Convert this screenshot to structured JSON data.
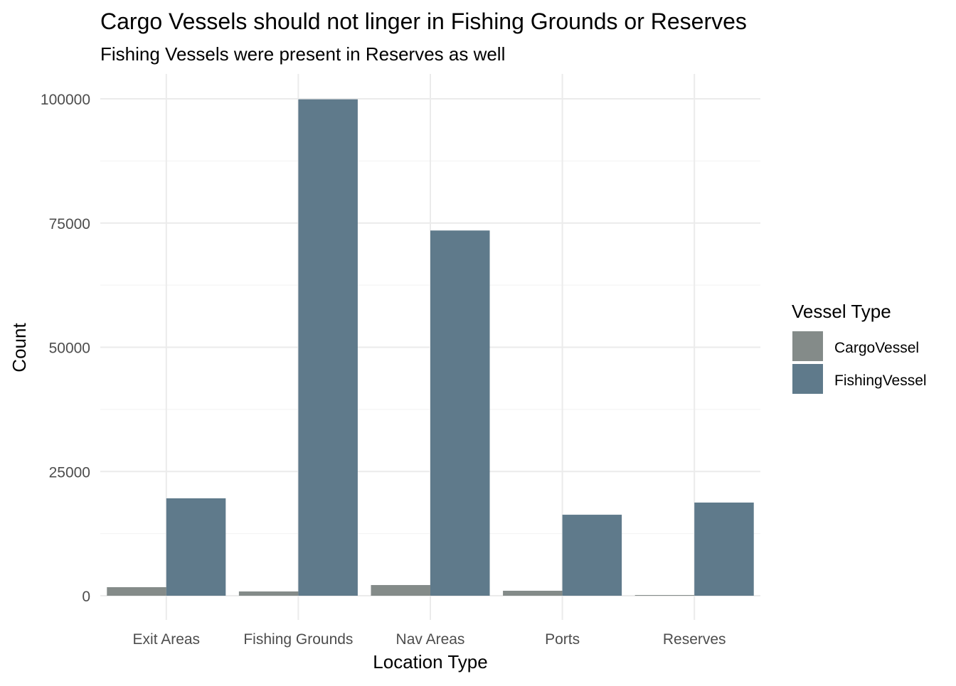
{
  "chart_data": {
    "type": "bar",
    "title": "Cargo Vessels should not linger in Fishing Grounds or Reserves",
    "subtitle": "Fishing Vessels were present in Reserves as well",
    "xlabel": "Location Type",
    "ylabel": "Count",
    "categories": [
      "Exit Areas",
      "Fishing Grounds",
      "Nav Areas",
      "Ports",
      "Reserves"
    ],
    "series": [
      {
        "name": "CargoVessel",
        "color": "#848B89",
        "values": [
          1720,
          860,
          2150,
          1000,
          140
        ]
      },
      {
        "name": "FishingVessel",
        "color": "#5F7A8B",
        "values": [
          19600,
          99900,
          73500,
          16300,
          18750
        ]
      }
    ],
    "ylim": [
      -5000,
      105000
    ],
    "yticks": [
      0,
      25000,
      50000,
      75000,
      100000
    ],
    "ytick_labels": [
      "0",
      "25000",
      "50000",
      "75000",
      "100000"
    ],
    "legend": {
      "title": "Vessel Type",
      "position": "right"
    },
    "grid": true
  }
}
